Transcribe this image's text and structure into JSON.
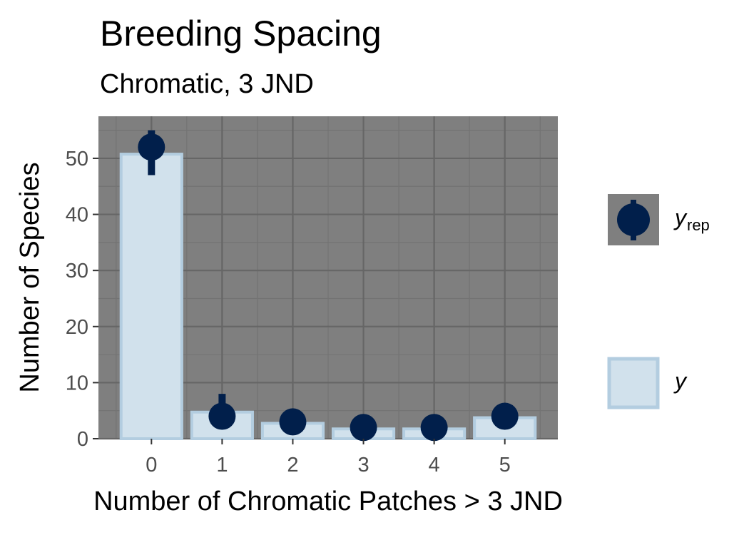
{
  "chart_data": {
    "type": "bar",
    "title": "Breeding Spacing",
    "subtitle": "Chromatic, 3 JND",
    "xlabel": "Number of Chromatic Patches > 3 JND",
    "ylabel": "Number of Species",
    "categories": [
      "0",
      "1",
      "2",
      "3",
      "4",
      "5"
    ],
    "x": [
      0,
      1,
      2,
      3,
      4,
      5
    ],
    "xlim": [
      -0.75,
      5.75
    ],
    "ylim": [
      0,
      57.5
    ],
    "yticks": [
      0,
      10,
      20,
      30,
      40,
      50
    ],
    "grid": true,
    "legend_position": "right",
    "series": [
      {
        "name": "y",
        "kind": "bar",
        "values": [
          51,
          5,
          3,
          2,
          2,
          4
        ],
        "fill": "#d1e1ec",
        "stroke": "#b3cde0"
      },
      {
        "name": "y_rep",
        "kind": "pointrange",
        "median": [
          52,
          4,
          3,
          2,
          2,
          4
        ],
        "low": [
          47,
          2,
          3,
          2,
          2,
          4
        ],
        "high": [
          55,
          8,
          3,
          2,
          2,
          4
        ],
        "color": "#011f4b"
      }
    ],
    "legend": {
      "yrep_main": "y",
      "yrep_sub": "rep",
      "y": "y"
    },
    "colors": {
      "panel_background": "#7f7f7f",
      "grid_major": "#666666",
      "grid_minor": "#737373"
    }
  }
}
